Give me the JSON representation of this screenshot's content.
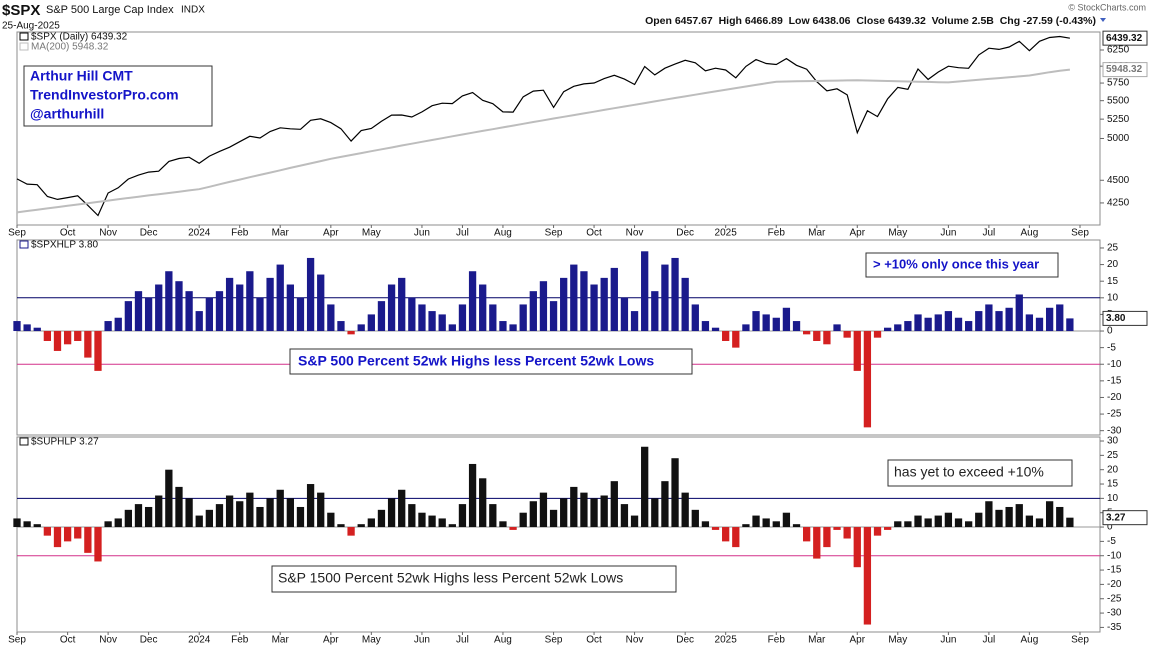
{
  "header": {
    "symbol": "$SPX",
    "name": "S&P 500 Large Cap Index",
    "exchange": "INDX",
    "date": "25-Aug-2025",
    "quote": "Open 6457.67  High 6466.89  Low 6438.06  Close 6439.32  Volume 2.5B  Chg -27.59 (-0.43%)",
    "credit": "© StockCharts.com"
  },
  "chart_data": [
    {
      "type": "line",
      "log_scale": true,
      "ylim": [
        4020,
        6540
      ],
      "yticks": [
        4250,
        4500,
        5000,
        5250,
        5500,
        5750,
        6000,
        6250
      ],
      "annotations": [
        "Arthur Hill CMT",
        "TrendInvestorPro.com",
        "@arthurhill"
      ],
      "categories": [
        "Sep",
        null,
        null,
        null,
        null,
        "Oct",
        null,
        null,
        null,
        "Nov",
        null,
        null,
        null,
        "Dec",
        null,
        null,
        null,
        null,
        "2024",
        null,
        null,
        null,
        "Feb",
        null,
        null,
        null,
        "Mar",
        null,
        null,
        null,
        null,
        "Apr",
        null,
        null,
        null,
        "May",
        null,
        null,
        null,
        null,
        "Jun",
        null,
        null,
        null,
        "Jul",
        null,
        null,
        null,
        "Aug",
        null,
        null,
        null,
        null,
        "Sep",
        null,
        null,
        null,
        "Oct",
        null,
        null,
        null,
        "Nov",
        null,
        null,
        null,
        null,
        "Dec",
        null,
        null,
        null,
        "2025",
        null,
        null,
        null,
        null,
        "Feb",
        null,
        null,
        null,
        "Mar",
        null,
        null,
        null,
        "Apr",
        null,
        null,
        null,
        "May",
        null,
        null,
        null,
        null,
        "Jun",
        null,
        null,
        null,
        "Jul",
        null,
        null,
        null,
        "Aug",
        null,
        null,
        null,
        null,
        "Sep"
      ],
      "series": [
        {
          "name": "$SPX (Daily) 6439.32",
          "color": "#000000",
          "last_label": "6439.32",
          "values": [
            4516,
            4457,
            4450,
            4320,
            4288,
            4308,
            4327,
            4224,
            4117,
            4358,
            4415,
            4514,
            4559,
            4594,
            4604,
            4719,
            4754,
            4770,
            4697,
            4783,
            4840,
            4891,
            4959,
            5027,
            5006,
            5089,
            5137,
            5124,
            5117,
            5234,
            5254,
            5204,
            5123,
            4967,
            5100,
            5128,
            5223,
            5303,
            5305,
            5278,
            5347,
            5431,
            5465,
            5460,
            5567,
            5615,
            5505,
            5459,
            5346,
            5344,
            5554,
            5634,
            5648,
            5408,
            5626,
            5703,
            5738,
            5751,
            5815,
            5864,
            5808,
            5729,
            5995,
            5870,
            5969,
            6032,
            6090,
            6051,
            5931,
            5970,
            5942,
            5827,
            5997,
            6101,
            6041,
            6026,
            6115,
            6013,
            5955,
            5770,
            5639,
            5668,
            5581,
            5074,
            5363,
            5283,
            5525,
            5687,
            5660,
            5958,
            5803,
            5912,
            6000,
            5977,
            5968,
            6173,
            6279,
            6260,
            6297,
            6389,
            6238,
            6389,
            6450,
            6467,
            6439.32,
            null
          ]
        },
        {
          "name": "MA(200) 5948.32",
          "color": "#bdbdbd",
          "last_label": "5948.32",
          "values": [
            4150,
            4164,
            4178,
            4192,
            4206,
            4219,
            4233,
            4247,
            4261,
            4275,
            4289,
            4303,
            4317,
            4331,
            4344,
            4358,
            4372,
            4386,
            4400,
            4427,
            4454,
            4481,
            4508,
            4535,
            4561,
            4588,
            4615,
            4642,
            4669,
            4696,
            4723,
            4750,
            4773,
            4796,
            4819,
            4842,
            4865,
            4888,
            4912,
            4935,
            4958,
            4981,
            5004,
            5027,
            5050,
            5073,
            5096,
            5119,
            5142,
            5165,
            5188,
            5212,
            5235,
            5258,
            5281,
            5304,
            5327,
            5350,
            5373,
            5397,
            5420,
            5443,
            5467,
            5490,
            5513,
            5537,
            5560,
            5583,
            5607,
            5630,
            5653,
            5677,
            5700,
            5723,
            5747,
            5770,
            5773,
            5775,
            5778,
            5780,
            5783,
            5785,
            5788,
            5790,
            5787,
            5783,
            5780,
            5777,
            5773,
            5770,
            5767,
            5763,
            5760,
            5773,
            5785,
            5798,
            5810,
            5823,
            5835,
            5848,
            5860,
            5885,
            5910,
            5930,
            5948.32,
            null
          ]
        }
      ]
    },
    {
      "type": "bar",
      "ylim": [
        -31.3,
        27.4
      ],
      "yticks": [
        25,
        20,
        15,
        10,
        5,
        0,
        -5,
        -10,
        -15,
        -20,
        -25,
        -30
      ],
      "ref_lines": [
        {
          "value": 0,
          "color": "#9a9a9a"
        },
        {
          "value": 10,
          "color": "#000066"
        },
        {
          "value": -10,
          "color": "#d4308a"
        }
      ],
      "annotations": [
        "> +10% only once this year",
        "S&P 500 Percent 52wk Highs less Percent 52wk Lows"
      ],
      "series": [
        {
          "name": "$SPXHLP 3.80",
          "color": "#1a1a8c",
          "negative_color": "#d42020",
          "last_label": "3.80",
          "values": [
            3,
            2,
            1,
            -3,
            -6,
            -4,
            -3,
            -8,
            -12,
            3,
            4,
            9,
            12,
            10,
            14,
            18,
            15,
            12,
            6,
            10,
            12,
            16,
            14,
            18,
            10,
            16,
            20,
            14,
            10,
            22,
            17,
            8,
            3,
            -1,
            2,
            5,
            9,
            14,
            16,
            10,
            8,
            6,
            5,
            2,
            8,
            18,
            14,
            8,
            3,
            2,
            8,
            12,
            15,
            9,
            16,
            20,
            18,
            14,
            16,
            19,
            10,
            6,
            24,
            12,
            20,
            22,
            16,
            8,
            3,
            1,
            -3,
            -5,
            2,
            6,
            5,
            4,
            7,
            3,
            -1,
            -3,
            -4,
            2,
            -2,
            -12,
            -29,
            -2,
            1,
            2,
            3,
            5,
            4,
            5,
            6,
            4,
            3,
            6,
            8,
            6,
            7,
            11,
            5,
            4,
            7,
            8,
            3.8,
            null
          ]
        }
      ]
    },
    {
      "type": "bar",
      "ylim": [
        -36.6,
        31.4
      ],
      "yticks": [
        30,
        25,
        20,
        15,
        10,
        5,
        0,
        -5,
        -10,
        -15,
        -20,
        -25,
        -30,
        -35
      ],
      "ref_lines": [
        {
          "value": 0,
          "color": "#9a9a9a"
        },
        {
          "value": 10,
          "color": "#000066"
        },
        {
          "value": -10,
          "color": "#d4308a"
        }
      ],
      "annotations": [
        "has yet to exceed +10%",
        "S&P 1500 Percent 52wk Highs less Percent 52wk Lows"
      ],
      "categories": [
        "Sep",
        null,
        null,
        null,
        null,
        "Oct",
        null,
        null,
        null,
        "Nov",
        null,
        null,
        null,
        "Dec",
        null,
        null,
        null,
        null,
        "2024",
        null,
        null,
        null,
        "Feb",
        null,
        null,
        null,
        "Mar",
        null,
        null,
        null,
        null,
        "Apr",
        null,
        null,
        null,
        "May",
        null,
        null,
        null,
        null,
        "Jun",
        null,
        null,
        null,
        "Jul",
        null,
        null,
        null,
        "Aug",
        null,
        null,
        null,
        null,
        "Sep",
        null,
        null,
        null,
        "Oct",
        null,
        null,
        null,
        "Nov",
        null,
        null,
        null,
        null,
        "Dec",
        null,
        null,
        null,
        "2025",
        null,
        null,
        null,
        null,
        "Feb",
        null,
        null,
        null,
        "Mar",
        null,
        null,
        null,
        "Apr",
        null,
        null,
        null,
        "May",
        null,
        null,
        null,
        null,
        "Jun",
        null,
        null,
        null,
        "Jul",
        null,
        null,
        null,
        "Aug",
        null,
        null,
        null,
        null,
        "Sep"
      ],
      "series": [
        {
          "name": "$SUPHLP 3.27",
          "color": "#111111",
          "negative_color": "#d42020",
          "last_label": "3.27",
          "values": [
            3,
            2,
            1,
            -3,
            -7,
            -5,
            -4,
            -9,
            -12,
            2,
            3,
            6,
            8,
            7,
            11,
            20,
            14,
            10,
            4,
            6,
            8,
            11,
            9,
            12,
            7,
            10,
            13,
            10,
            7,
            15,
            12,
            5,
            1,
            -3,
            1,
            3,
            6,
            10,
            13,
            8,
            5,
            4,
            3,
            1,
            8,
            22,
            17,
            8,
            2,
            -1,
            5,
            9,
            12,
            6,
            10,
            14,
            12,
            10,
            11,
            16,
            8,
            4,
            28,
            10,
            16,
            24,
            12,
            6,
            2,
            -1,
            -5,
            -7,
            1,
            4,
            3,
            2,
            5,
            1,
            -5,
            -11,
            -7,
            -1,
            -4,
            -14,
            -34,
            -3,
            -1,
            2,
            2,
            4,
            3,
            4,
            5,
            3,
            2,
            5,
            9,
            6,
            7,
            8,
            4,
            3,
            9,
            7,
            3.27,
            null
          ]
        }
      ]
    }
  ]
}
